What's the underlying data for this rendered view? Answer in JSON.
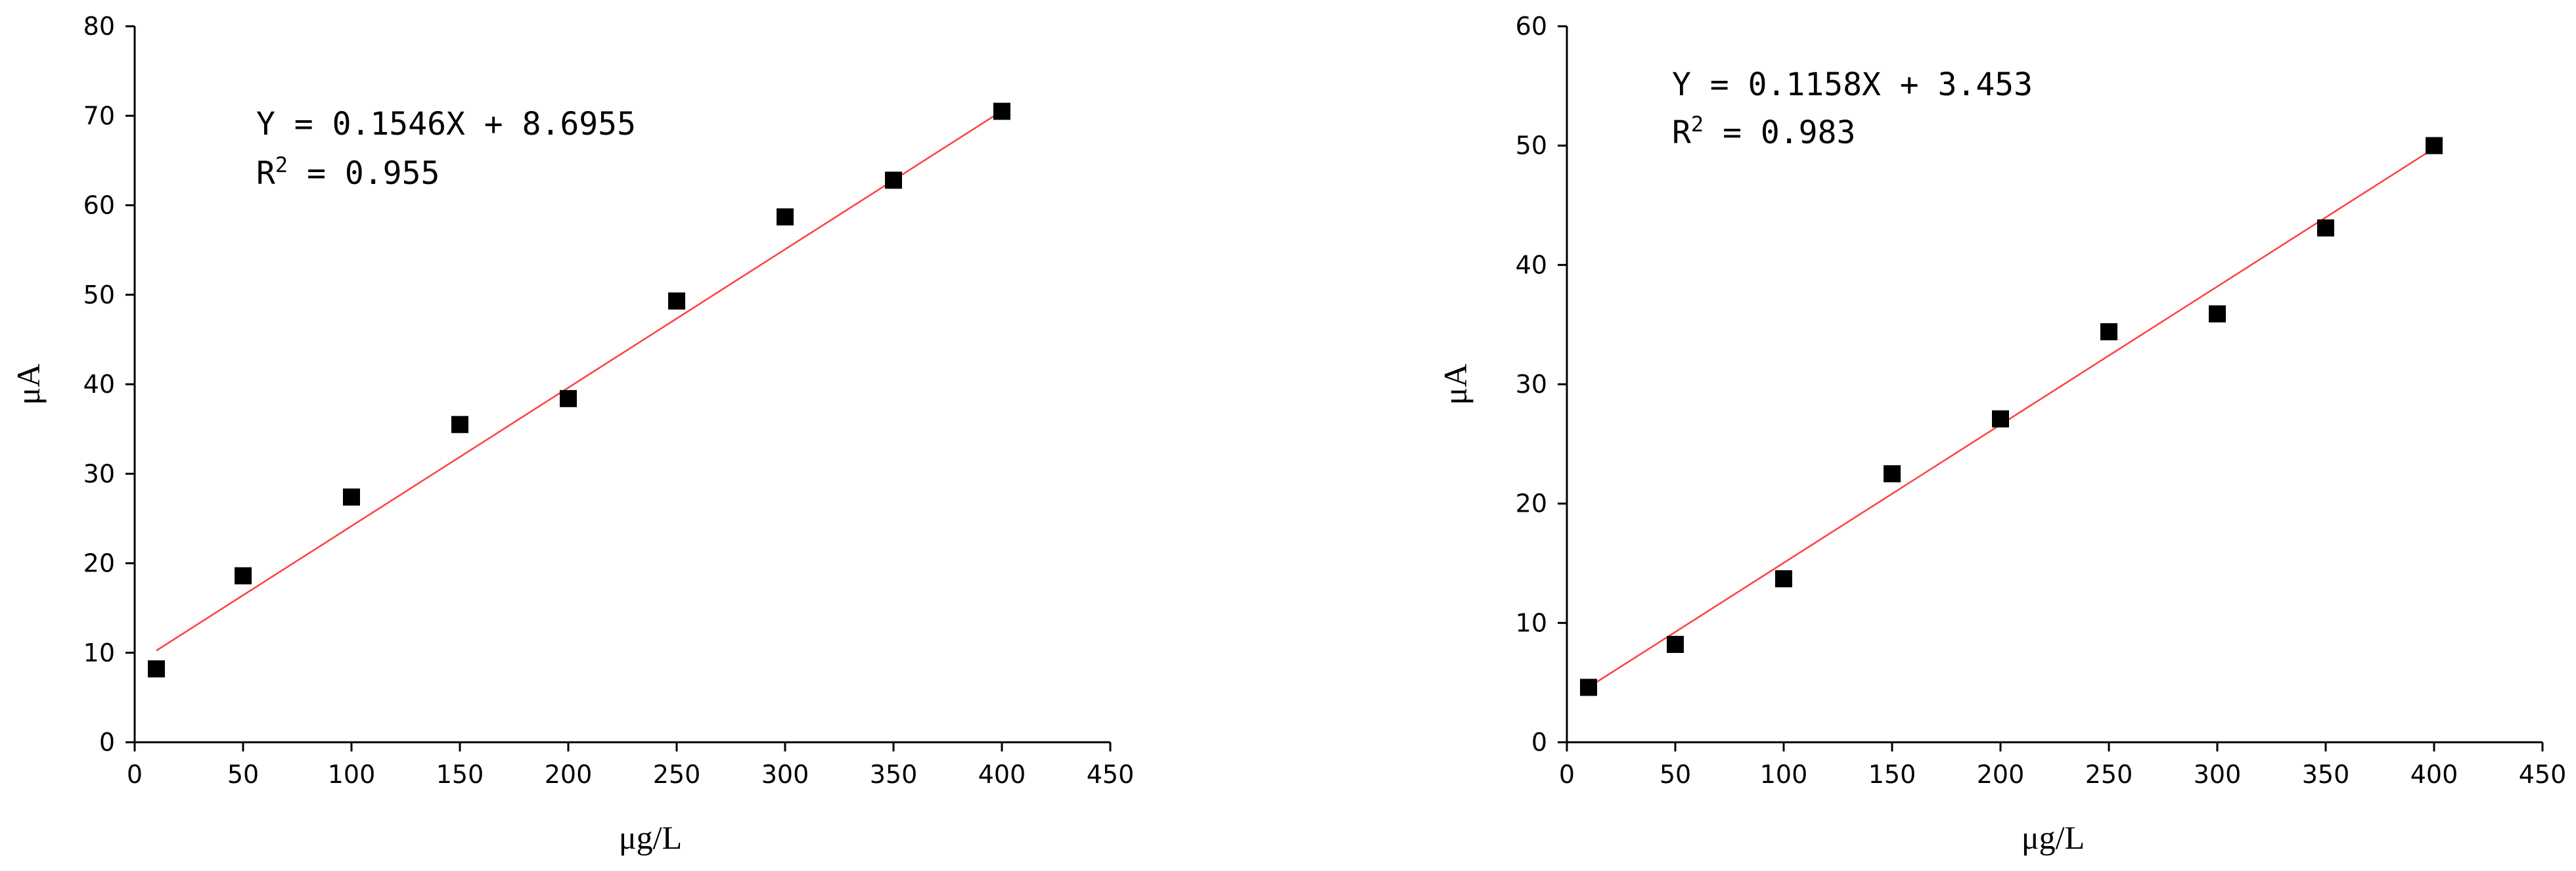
{
  "chart_data": [
    {
      "type": "scatter",
      "xlabel": "μg/L",
      "ylabel": "μA",
      "xlim": [
        0,
        450
      ],
      "ylim": [
        0,
        80
      ],
      "xticks": [
        0,
        50,
        100,
        150,
        200,
        250,
        300,
        350,
        400,
        450
      ],
      "yticks": [
        0,
        10,
        20,
        30,
        40,
        50,
        60,
        70,
        80
      ],
      "grid": false,
      "x": [
        10,
        50,
        100,
        150,
        200,
        250,
        300,
        350,
        400
      ],
      "y": [
        8.2,
        18.6,
        27.4,
        35.5,
        38.4,
        49.3,
        58.7,
        62.8,
        70.5
      ],
      "fit": {
        "slope": 0.1546,
        "intercept": 8.6955,
        "x_range": [
          10,
          400
        ]
      },
      "equation": "Y =  0.1546X + 8.6955",
      "r2_label": "R",
      "r2_exp": "2",
      "r2_value": " =  0.955",
      "marker_color": "#000000",
      "fit_color": "#ff4040"
    },
    {
      "type": "scatter",
      "xlabel": "μg/L",
      "ylabel": "μA",
      "xlim": [
        0,
        450
      ],
      "ylim": [
        0,
        60
      ],
      "xticks": [
        0,
        50,
        100,
        150,
        200,
        250,
        300,
        350,
        400,
        450
      ],
      "yticks": [
        0,
        10,
        20,
        30,
        40,
        50,
        60
      ],
      "grid": false,
      "x": [
        10,
        50,
        100,
        150,
        200,
        250,
        300,
        350,
        400
      ],
      "y": [
        4.6,
        8.2,
        13.7,
        22.5,
        27.1,
        34.4,
        35.9,
        43.1,
        50.0
      ],
      "fit": {
        "slope": 0.1158,
        "intercept": 3.453,
        "x_range": [
          10,
          400
        ]
      },
      "equation": "Y =  0.1158X + 3.453",
      "r2_label": "R",
      "r2_exp": "2",
      "r2_value": " =  0.983",
      "marker_color": "#000000",
      "fit_color": "#ff4040"
    }
  ]
}
